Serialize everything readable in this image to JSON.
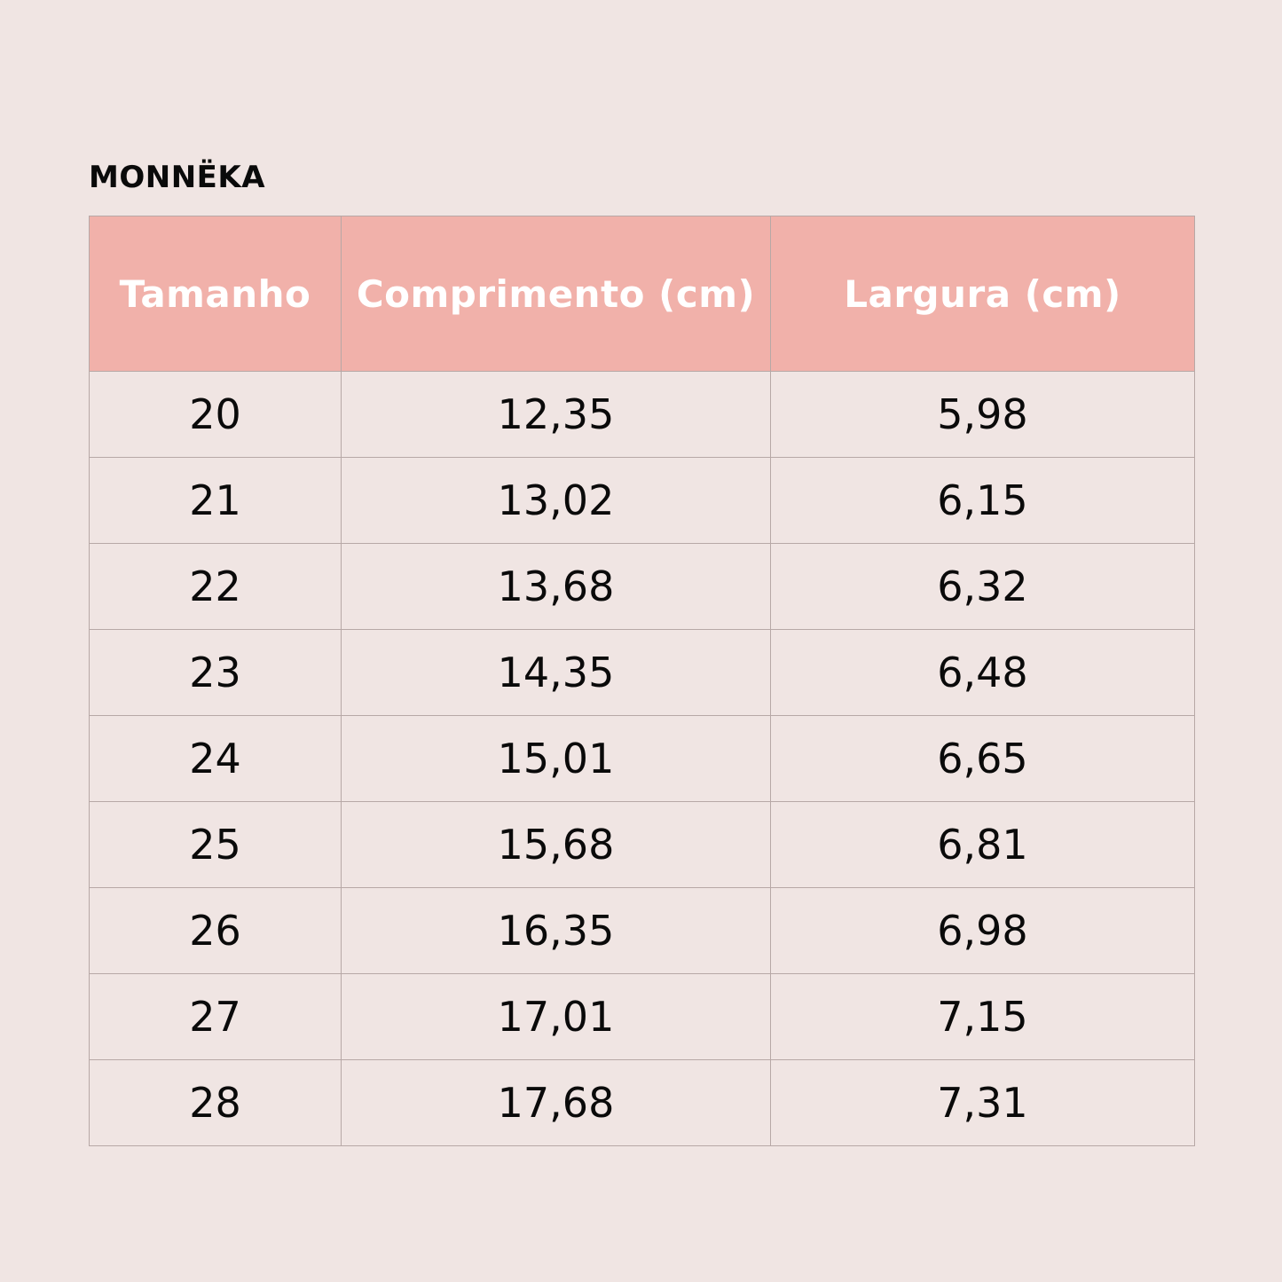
{
  "brand": "MONNËKA",
  "table": {
    "headers": [
      "Tamanho",
      "Comprimento (cm)",
      "Largura (cm)"
    ],
    "rows": [
      [
        "20",
        "12,35",
        "5,98"
      ],
      [
        "21",
        "13,02",
        "6,15"
      ],
      [
        "22",
        "13,68",
        "6,32"
      ],
      [
        "23",
        "14,35",
        "6,48"
      ],
      [
        "24",
        "15,01",
        "6,65"
      ],
      [
        "25",
        "15,68",
        "6,81"
      ],
      [
        "26",
        "16,35",
        "6,98"
      ],
      [
        "27",
        "17,01",
        "7,15"
      ],
      [
        "28",
        "17,68",
        "7,31"
      ]
    ]
  },
  "colors": {
    "background": "#f0e5e3",
    "header_fill": "#f1b1aa",
    "header_text": "#ffffff",
    "body_text": "#0a0a0a",
    "grid_line": "#b7a8a6"
  }
}
